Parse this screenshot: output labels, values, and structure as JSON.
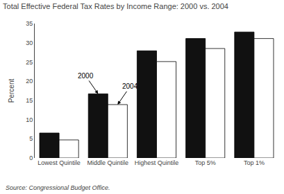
{
  "chart_data": {
    "type": "bar",
    "title": "Total Effective Federal Tax Rates by Income Range: 2000 vs. 2004",
    "ylabel": "Percent",
    "source": "Source: Congressional Budget Office.",
    "categories": [
      "Lowest Quintile",
      "Middle Quintile",
      "Highest Quintile",
      "Top 5%",
      "Top 1%"
    ],
    "series": [
      {
        "name": "2000",
        "color": "#111111",
        "values": [
          6.5,
          16.7,
          27.9,
          31.1,
          32.8
        ]
      },
      {
        "name": "2004",
        "color": "#ffffff",
        "values": [
          4.7,
          13.9,
          25.1,
          28.5,
          31.1
        ]
      }
    ],
    "annotations": [
      {
        "text": "2000",
        "series": "2000",
        "category": "Middle Quintile"
      },
      {
        "text": "2004",
        "series": "2004",
        "category": "Middle Quintile"
      }
    ],
    "ylim": [
      0,
      35
    ],
    "yticks": [
      0,
      5,
      10,
      15,
      20,
      25,
      30,
      35
    ],
    "grid": false
  }
}
